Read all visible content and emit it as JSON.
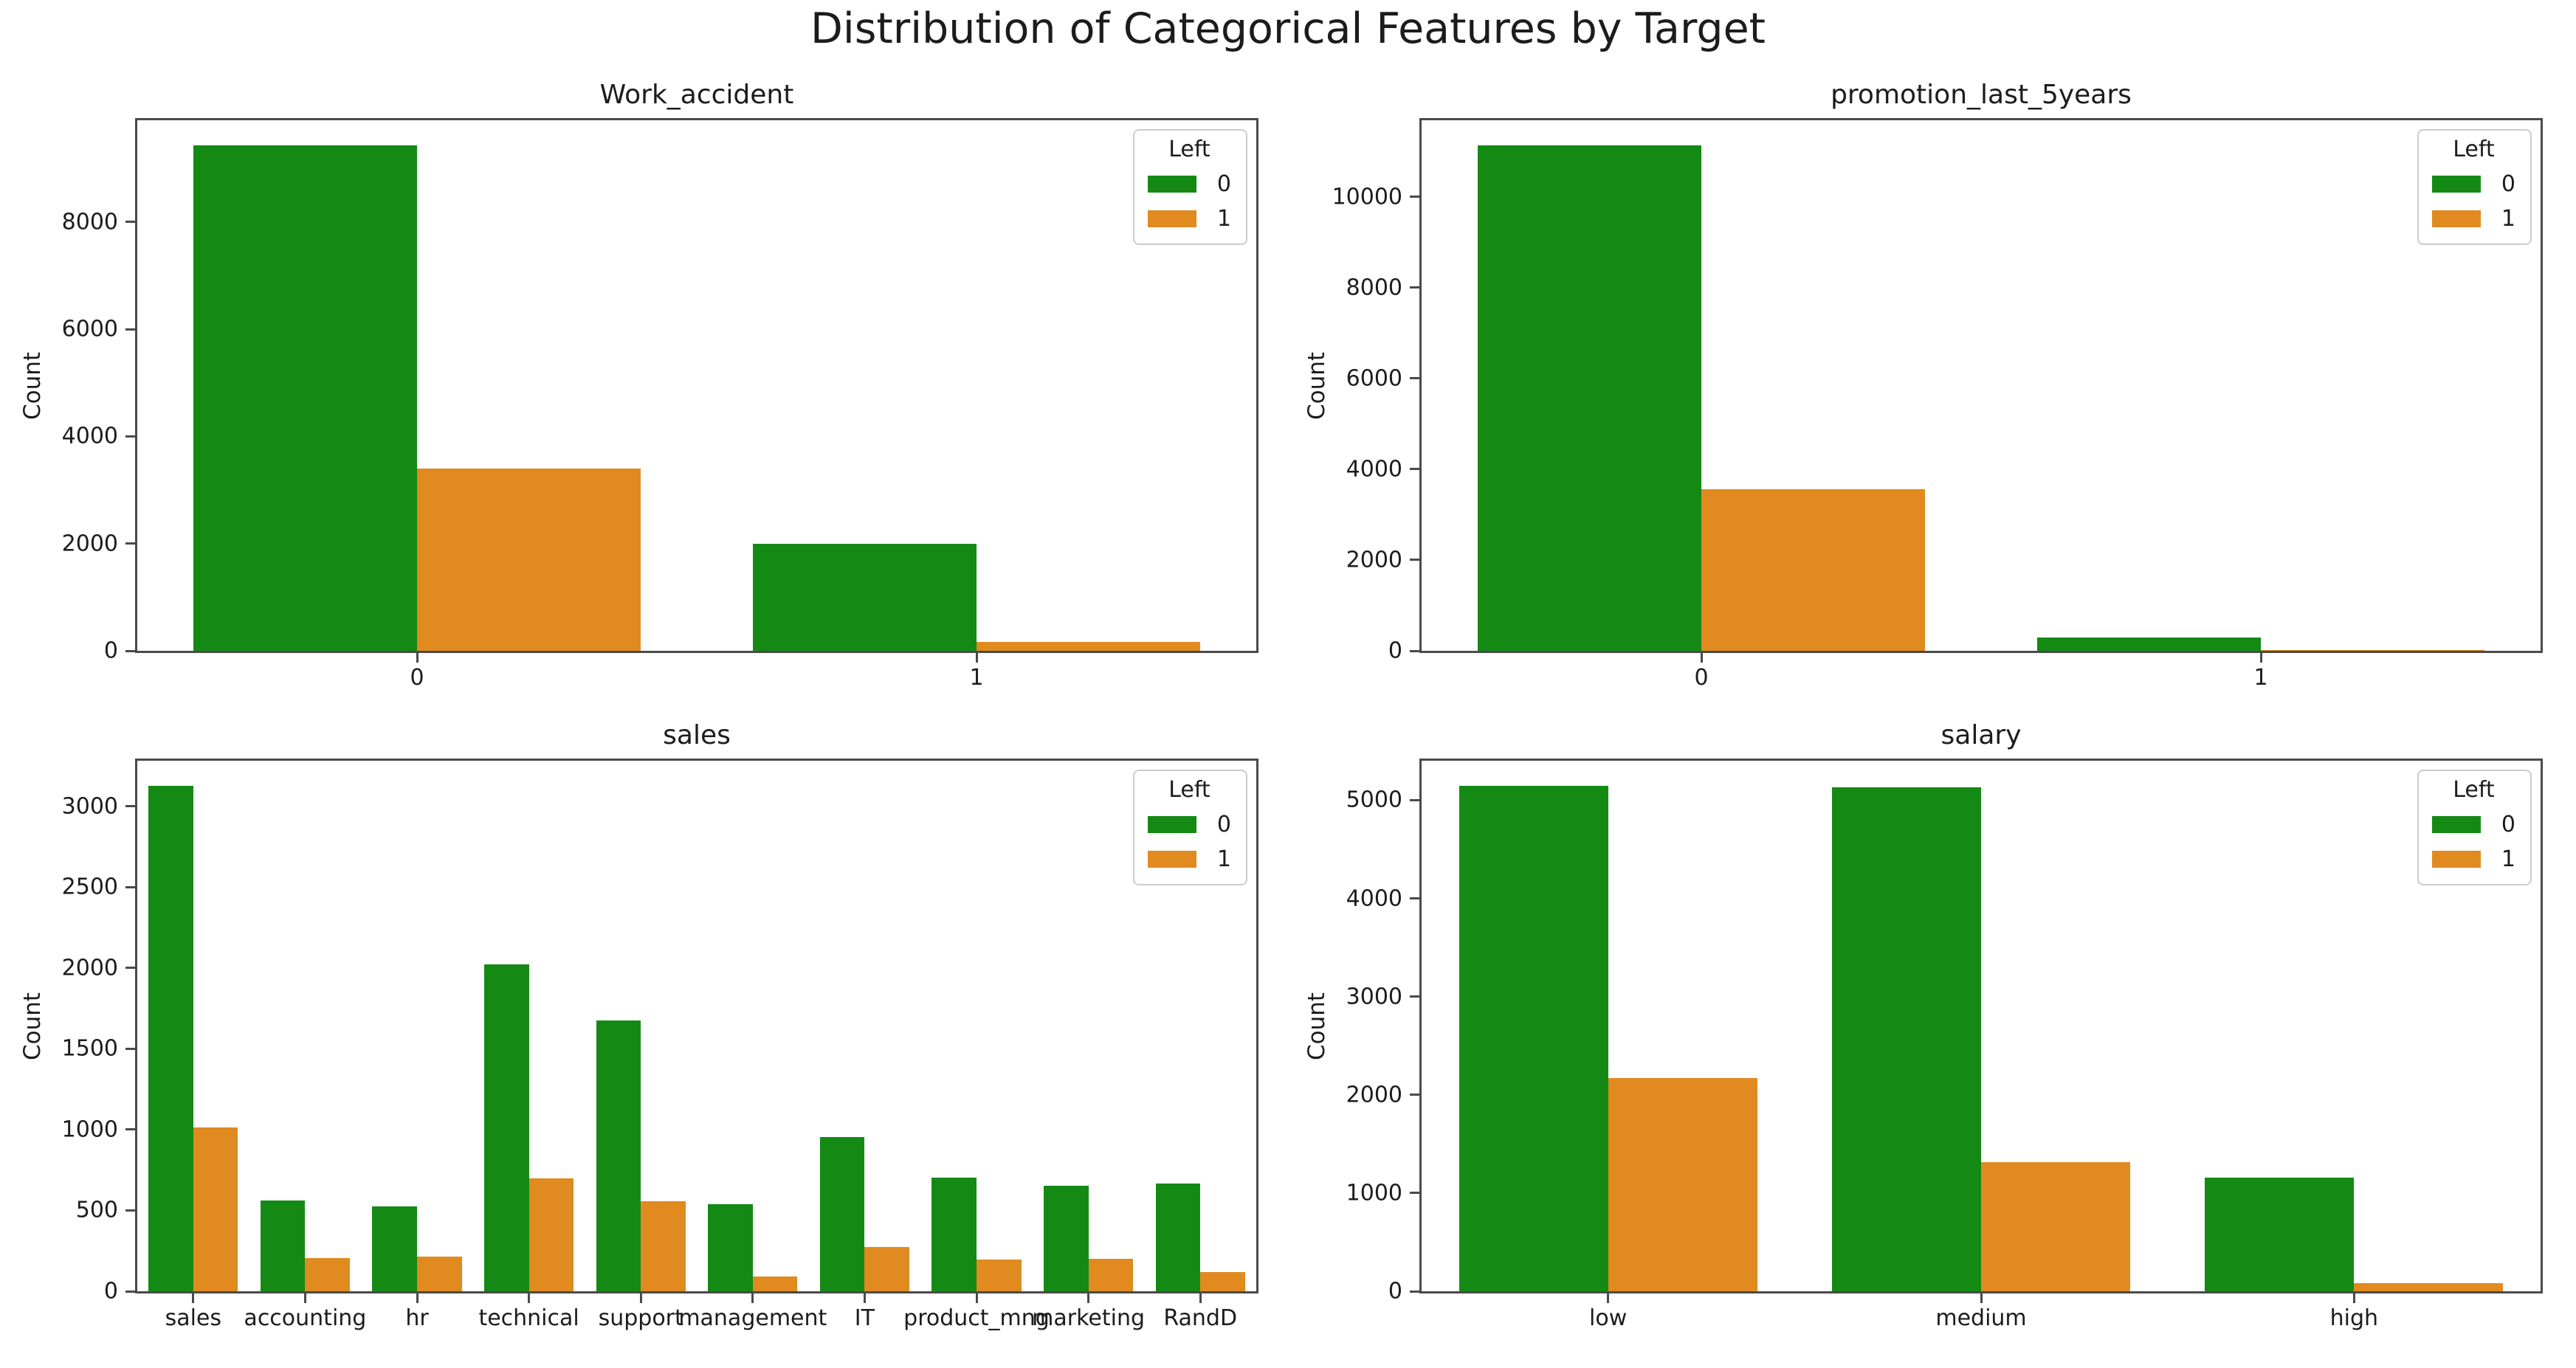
{
  "figure": {
    "suptitle": "Distribution of Categorical Features by Target",
    "background": "#ffffff",
    "text_color": "#1c1c1c"
  },
  "legend": {
    "title": "Left",
    "entries": [
      {
        "label": "0",
        "color": "#148a14"
      },
      {
        "label": "1",
        "color": "#e08a20"
      }
    ]
  },
  "chart_data": [
    {
      "type": "bar",
      "title": "Work_accident",
      "xlabel": "",
      "ylabel": "Count",
      "categories": [
        "0",
        "1"
      ],
      "series": [
        {
          "name": "0",
          "color": "#148a14",
          "values": [
            9428,
            2000
          ]
        },
        {
          "name": "1",
          "color": "#e08a20",
          "values": [
            3402,
            169
          ]
        }
      ],
      "yticks": [
        0,
        2000,
        4000,
        6000,
        8000
      ],
      "ylim": [
        0,
        9900
      ],
      "grid": false,
      "legend_position": "upper right"
    },
    {
      "type": "bar",
      "title": "promotion_last_5years",
      "xlabel": "",
      "ylabel": "Count",
      "categories": [
        "0",
        "1"
      ],
      "series": [
        {
          "name": "0",
          "color": "#148a14",
          "values": [
            11128,
            300
          ]
        },
        {
          "name": "1",
          "color": "#e08a20",
          "values": [
            3552,
            19
          ]
        }
      ],
      "yticks": [
        0,
        2000,
        4000,
        6000,
        8000,
        10000
      ],
      "ylim": [
        0,
        11684
      ],
      "grid": false,
      "legend_position": "upper right"
    },
    {
      "type": "bar",
      "title": "sales",
      "xlabel": "",
      "ylabel": "Count",
      "categories": [
        "sales",
        "accounting",
        "hr",
        "technical",
        "support",
        "management",
        "IT",
        "product_mng",
        "marketing",
        "RandD"
      ],
      "series": [
        {
          "name": "0",
          "color": "#148a14",
          "values": [
            3126,
            563,
            524,
            2023,
            1674,
            539,
            954,
            704,
            655,
            666
          ]
        },
        {
          "name": "1",
          "color": "#e08a20",
          "values": [
            1014,
            204,
            215,
            697,
            555,
            91,
            273,
            198,
            203,
            121
          ]
        }
      ],
      "yticks": [
        0,
        500,
        1000,
        1500,
        2000,
        2500,
        3000
      ],
      "ylim": [
        0,
        3282
      ],
      "grid": false,
      "legend_position": "upper right"
    },
    {
      "type": "bar",
      "title": "salary",
      "xlabel": "",
      "ylabel": "Count",
      "categories": [
        "low",
        "medium",
        "high"
      ],
      "series": [
        {
          "name": "0",
          "color": "#148a14",
          "values": [
            5144,
            5129,
            1155
          ]
        },
        {
          "name": "1",
          "color": "#e08a20",
          "values": [
            2172,
            1317,
            82
          ]
        }
      ],
      "yticks": [
        0,
        1000,
        2000,
        3000,
        4000,
        5000
      ],
      "ylim": [
        0,
        5401
      ],
      "grid": false,
      "legend_position": "upper right"
    }
  ]
}
